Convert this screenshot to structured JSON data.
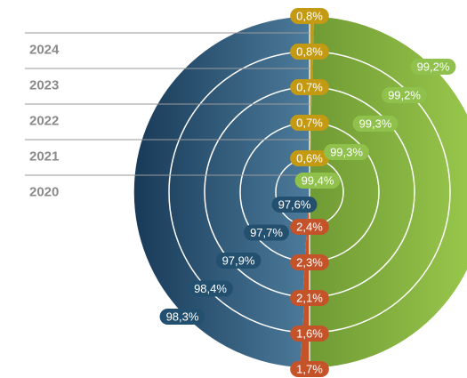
{
  "chart_data": {
    "type": "concentric_donut",
    "categories": [
      "2020",
      "2021",
      "2022",
      "2023",
      "2024"
    ],
    "series": [
      {
        "color": "#c49a12",
        "values": [
          0.6,
          0.7,
          0.7,
          0.8,
          0.8
        ],
        "value_labels": [
          "0,6%",
          "0,7%",
          "0,7%",
          "0,8%",
          "0,8%"
        ]
      },
      {
        "color": "#86b744",
        "values": [
          99.4,
          99.3,
          99.3,
          99.2,
          99.2
        ],
        "value_labels": [
          "99,4%",
          "99,3%",
          "99,3%",
          "99,2%",
          "99,2%"
        ]
      },
      {
        "color": "#c4532a",
        "values": [
          2.4,
          2.3,
          2.1,
          1.6,
          1.7
        ],
        "value_labels": [
          "2,4%",
          "2,3%",
          "2,1%",
          "1,6%",
          "1,7%"
        ]
      },
      {
        "color": "#24506f",
        "values": [
          97.6,
          97.7,
          97.9,
          98.4,
          98.3
        ],
        "value_labels": [
          "97,6%",
          "97,7%",
          "97,9%",
          "98,4%",
          "98,3%"
        ]
      }
    ]
  }
}
